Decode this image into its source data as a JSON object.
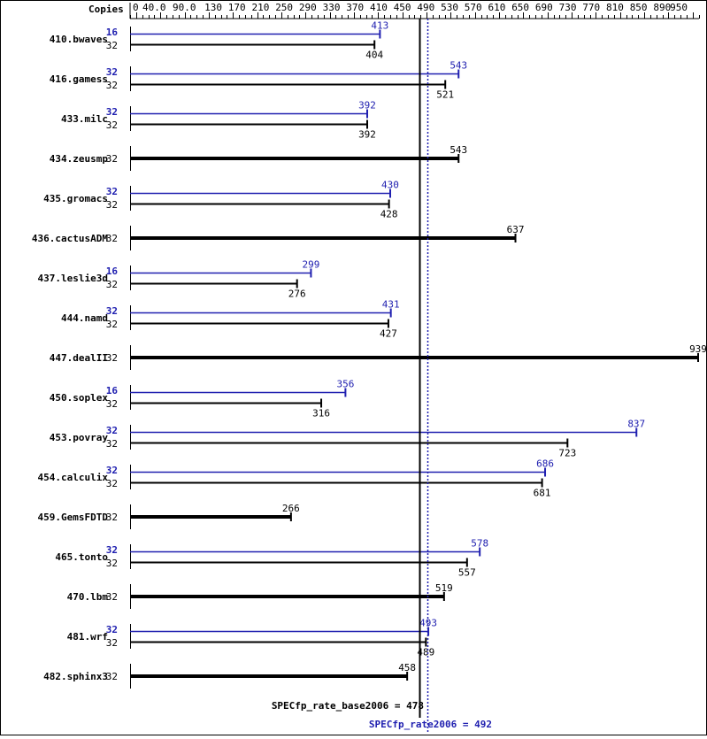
{
  "chart_data": {
    "type": "bar",
    "orientation": "horizontal",
    "copies_header": "Copies",
    "xlim": [
      0,
      950
    ],
    "tick_labels": [
      "0",
      "40.0",
      "90.0",
      "130",
      "170",
      "210",
      "250",
      "290",
      "330",
      "370",
      "410",
      "450",
      "490",
      "530",
      "570",
      "610",
      "650",
      "690",
      "730",
      "770",
      "810",
      "850",
      "890",
      "950"
    ],
    "colors": {
      "base": "#000000",
      "peak": "#2020b0"
    },
    "benchmarks": [
      {
        "name": "410.bwaves",
        "peak_copies": "16",
        "peak": 413,
        "base_copies": "32",
        "base": 404
      },
      {
        "name": "416.gamess",
        "peak_copies": "32",
        "peak": 543,
        "base_copies": "32",
        "base": 521
      },
      {
        "name": "433.milc",
        "peak_copies": "32",
        "peak": 392,
        "base_copies": "32",
        "base": 392
      },
      {
        "name": "434.zeusmp",
        "base_copies": "32",
        "base": 543
      },
      {
        "name": "435.gromacs",
        "peak_copies": "32",
        "peak": 430,
        "base_copies": "32",
        "base": 428
      },
      {
        "name": "436.cactusADM",
        "base_copies": "32",
        "base": 637
      },
      {
        "name": "437.leslie3d",
        "peak_copies": "16",
        "peak": 299,
        "base_copies": "32",
        "base": 276
      },
      {
        "name": "444.namd",
        "peak_copies": "32",
        "peak": 431,
        "base_copies": "32",
        "base": 427
      },
      {
        "name": "447.dealII",
        "base_copies": "32",
        "base": 939
      },
      {
        "name": "450.soplex",
        "peak_copies": "16",
        "peak": 356,
        "base_copies": "32",
        "base": 316
      },
      {
        "name": "453.povray",
        "peak_copies": "32",
        "peak": 837,
        "base_copies": "32",
        "base": 723
      },
      {
        "name": "454.calculix",
        "peak_copies": "32",
        "peak": 686,
        "base_copies": "32",
        "base": 681
      },
      {
        "name": "459.GemsFDTD",
        "base_copies": "32",
        "base": 266
      },
      {
        "name": "465.tonto",
        "peak_copies": "32",
        "peak": 578,
        "base_copies": "32",
        "base": 557
      },
      {
        "name": "470.lbm",
        "base_copies": "32",
        "base": 519
      },
      {
        "name": "481.wrf",
        "peak_copies": "32",
        "peak": 493,
        "base_copies": "32",
        "base": 489
      },
      {
        "name": "482.sphinx3",
        "base_copies": "32",
        "base": 458
      }
    ],
    "base_mean": {
      "label": "SPECfp_rate_base2006 = 478",
      "value": 478
    },
    "peak_mean": {
      "label": "SPECfp_rate2006 = 492",
      "value": 492
    }
  }
}
